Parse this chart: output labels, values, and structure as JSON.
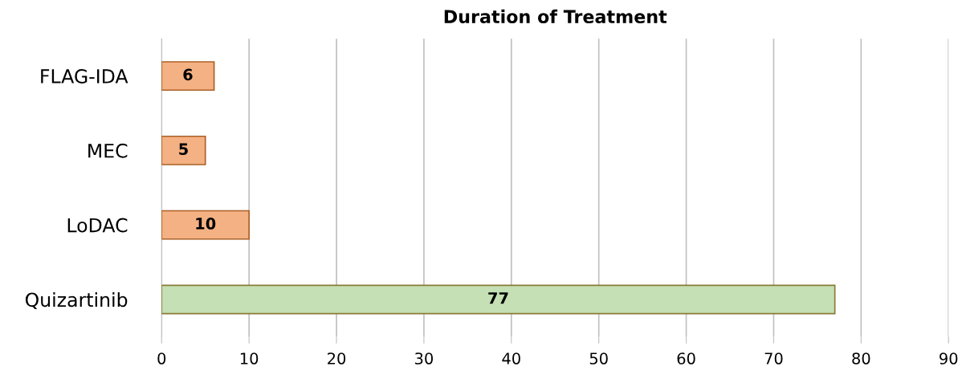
{
  "chart_data": {
    "type": "bar",
    "orientation": "horizontal",
    "title": "Duration of Treatment",
    "categories": [
      "FLAG-IDA",
      "MEC",
      "LoDAC",
      "Quizartinib"
    ],
    "values": [
      6,
      5,
      10,
      77
    ],
    "colors": [
      "#f4b183",
      "#f4b183",
      "#f4b183",
      "#c5e0b4"
    ],
    "xlim": [
      0,
      90
    ],
    "xticks": [
      0,
      10,
      20,
      30,
      40,
      50,
      60,
      70,
      80,
      90
    ],
    "grid": "x",
    "data_labels": true
  }
}
